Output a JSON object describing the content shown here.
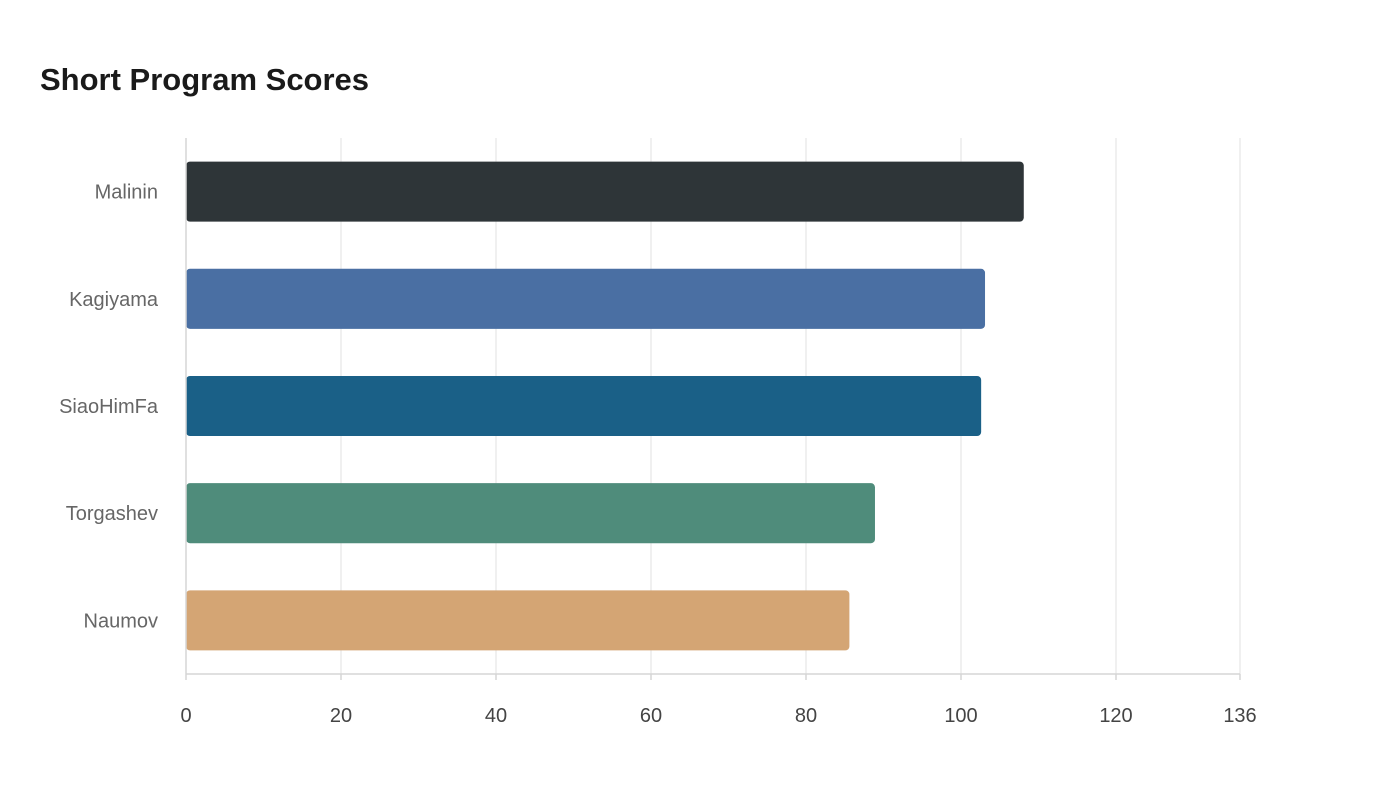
{
  "chart_data": {
    "type": "bar",
    "orientation": "horizontal",
    "title": "Short Program Scores",
    "xlabel": "",
    "ylabel": "",
    "categories": [
      "Malinin",
      "Kagiyama",
      "SiaoHimFa",
      "Torgashev",
      "Naumov"
    ],
    "values": [
      108.1,
      103.1,
      102.6,
      88.9,
      85.6
    ],
    "xlim": [
      0,
      136
    ],
    "x_ticks": [
      0,
      20,
      40,
      60,
      80,
      100,
      120,
      136
    ],
    "grid": true,
    "legend": "none",
    "colors": [
      "#2e3538",
      "#4a6fa3",
      "#1a6087",
      "#4f8c7b",
      "#d4a574"
    ]
  }
}
